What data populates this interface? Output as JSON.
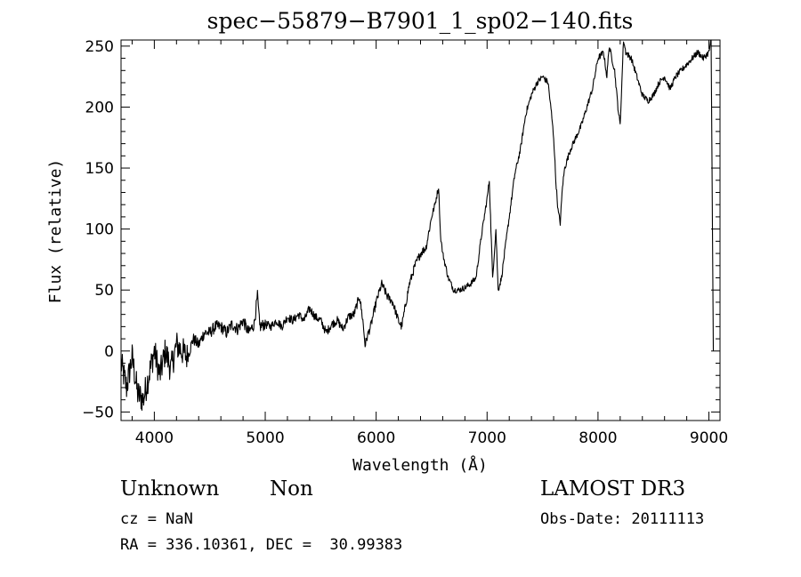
{
  "chart_data": {
    "type": "line",
    "title": "spec−55879−B7901_1_sp02−140.fits",
    "xlabel": "Wavelength (Å)",
    "ylabel": "Flux (relative)",
    "xlim": [
      3700,
      9100
    ],
    "ylim": [
      -57,
      255
    ],
    "x_ticks": [
      4000,
      5000,
      6000,
      7000,
      8000,
      9000
    ],
    "y_ticks": [
      -50,
      0,
      50,
      100,
      150,
      200,
      250
    ],
    "grid": false,
    "series": [
      {
        "x": [
          3700,
          3750,
          3800,
          3850,
          3900,
          3950,
          4000,
          4050,
          4100,
          4150,
          4200,
          4250,
          4300,
          4350,
          4400,
          4450,
          4500,
          4550,
          4600,
          4650,
          4700,
          4750,
          4800,
          4850,
          4900,
          4930,
          4950,
          5000,
          5050,
          5100,
          5150,
          5200,
          5250,
          5300,
          5350,
          5400,
          5450,
          5500,
          5550,
          5600,
          5650,
          5700,
          5750,
          5800,
          5850,
          5880,
          5900,
          5930,
          5950,
          6000,
          6050,
          6100,
          6150,
          6200,
          6230,
          6250,
          6280,
          6300,
          6350,
          6400,
          6450,
          6500,
          6530,
          6563,
          6580,
          6600,
          6650,
          6700,
          6750,
          6800,
          6850,
          6900,
          6950,
          7000,
          7020,
          7050,
          7080,
          7100,
          7130,
          7150,
          7200,
          7250,
          7300,
          7350,
          7400,
          7450,
          7500,
          7550,
          7580,
          7600,
          7620,
          7640,
          7660,
          7680,
          7700,
          7750,
          7800,
          7850,
          7900,
          7950,
          8000,
          8050,
          8080,
          8100,
          8150,
          8180,
          8200,
          8230,
          8250,
          8300,
          8350,
          8400,
          8450,
          8500,
          8550,
          8600,
          8650,
          8700,
          8750,
          8800,
          8850,
          8900,
          8950,
          9000,
          9020,
          9040
        ],
        "y": [
          -10,
          -30,
          -5,
          -35,
          -40,
          -20,
          0,
          -20,
          0,
          -15,
          5,
          0,
          -5,
          10,
          5,
          15,
          15,
          20,
          20,
          15,
          22,
          18,
          25,
          15,
          22,
          45,
          20,
          22,
          20,
          25,
          20,
          28,
          25,
          30,
          25,
          35,
          28,
          25,
          15,
          22,
          25,
          18,
          28,
          30,
          45,
          25,
          5,
          15,
          20,
          40,
          55,
          45,
          40,
          25,
          20,
          30,
          45,
          55,
          70,
          80,
          85,
          110,
          120,
          135,
          95,
          80,
          60,
          50,
          50,
          52,
          55,
          60,
          95,
          125,
          140,
          60,
          100,
          50,
          60,
          75,
          110,
          145,
          165,
          195,
          210,
          220,
          225,
          220,
          195,
          175,
          140,
          115,
          105,
          135,
          150,
          165,
          175,
          185,
          200,
          215,
          240,
          245,
          225,
          250,
          230,
          200,
          185,
          255,
          245,
          240,
          225,
          210,
          205,
          210,
          220,
          225,
          215,
          225,
          230,
          235,
          240,
          245,
          240,
          245,
          255,
          0
        ]
      }
    ]
  },
  "info": {
    "object_class": "Unknown",
    "object_subclass": "Non",
    "cz": "cz = NaN",
    "coords": "RA = 336.10361, DEC =  30.99383",
    "survey": "LAMOST DR3",
    "obs_date": "Obs-Date: 20111113"
  }
}
